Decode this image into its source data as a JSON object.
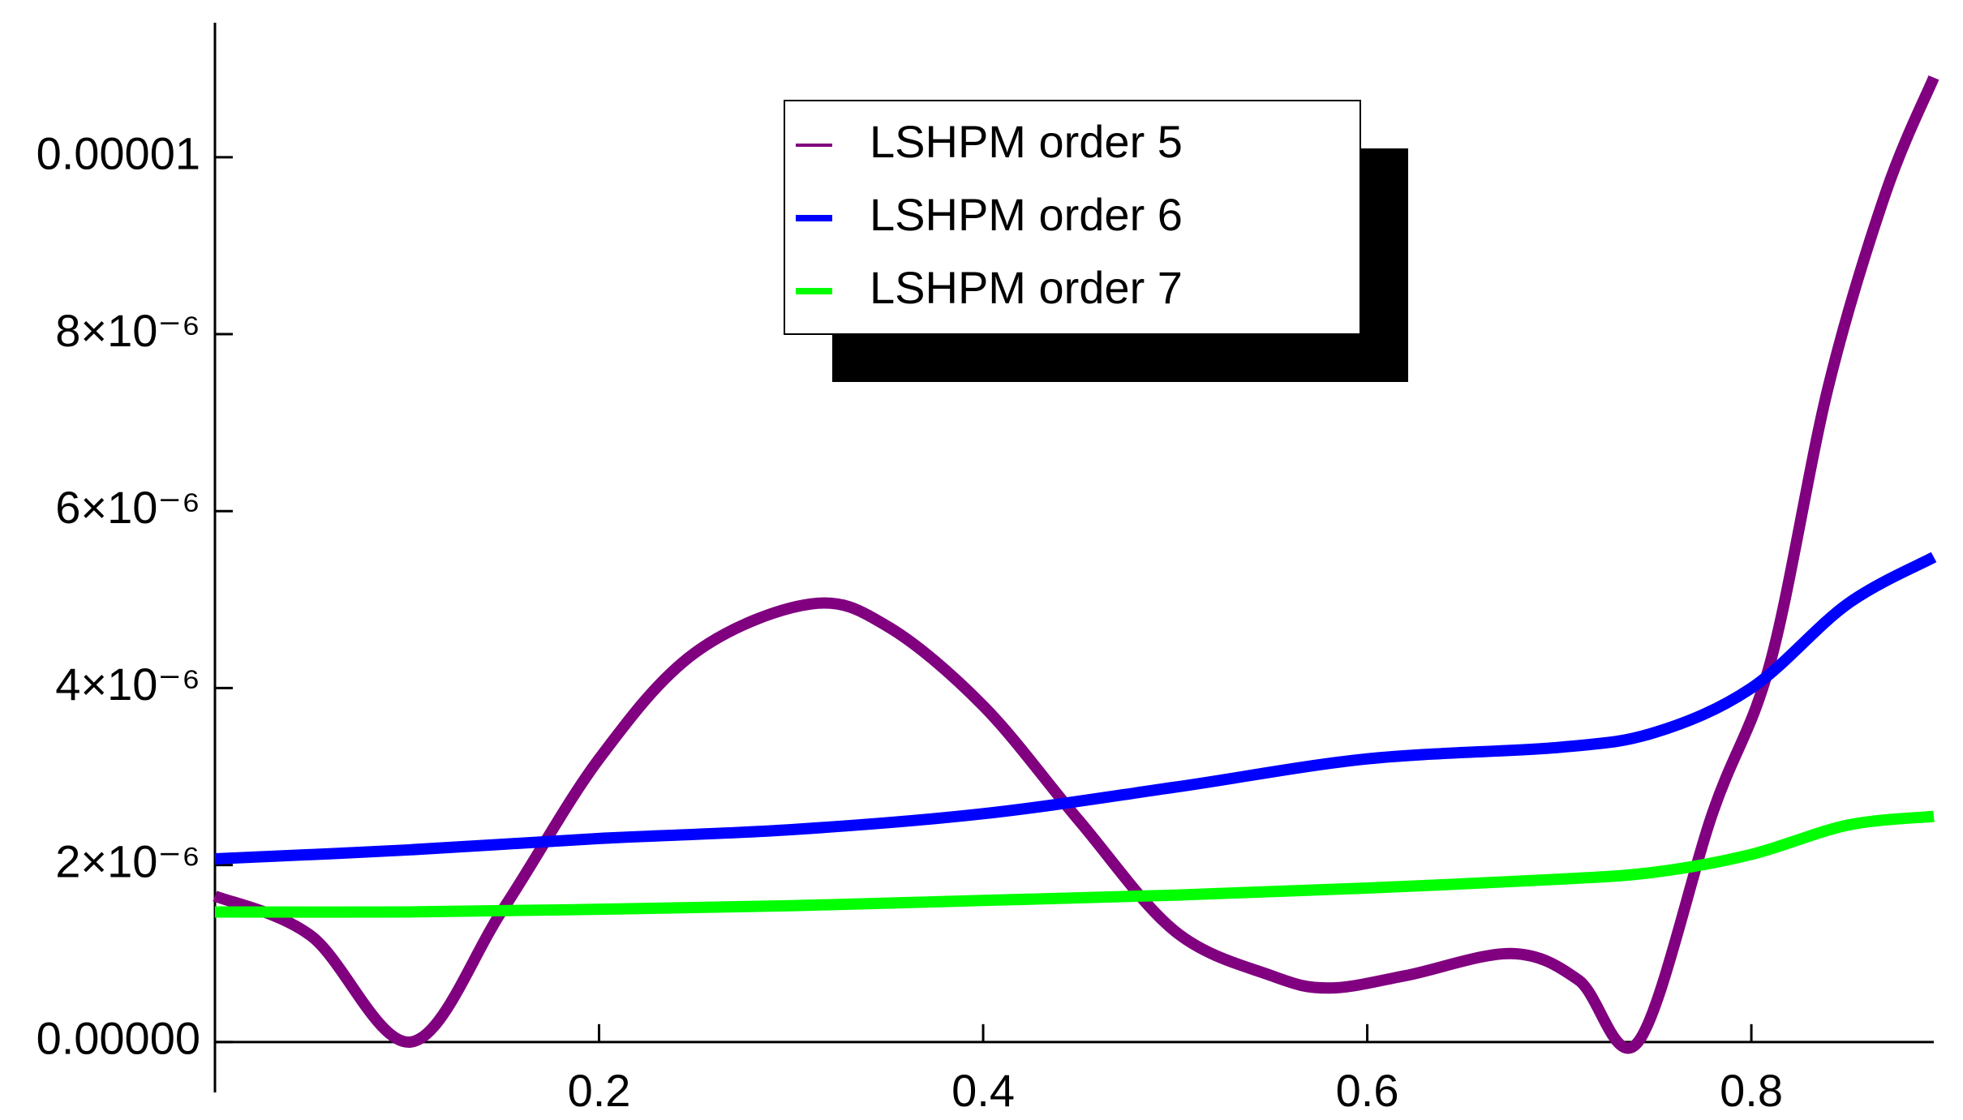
{
  "chart_data": {
    "type": "line",
    "xlim": [
      0,
      0.895
    ],
    "ylim": [
      -5.7e-07,
      1.152e-05
    ],
    "xticks": [
      0.2,
      0.4,
      0.6,
      0.8
    ],
    "yticks": [
      {
        "value": 0,
        "label": "0.00000"
      },
      {
        "value": 2e-06,
        "label": "2×10⁻⁶"
      },
      {
        "value": 4e-06,
        "label": "4×10⁻⁶"
      },
      {
        "value": 6e-06,
        "label": "6×10⁻⁶"
      },
      {
        "value": 8e-06,
        "label": "8×10⁻⁶"
      },
      {
        "value": 1e-05,
        "label": "0.00001"
      }
    ],
    "legend": "top-center",
    "series": [
      {
        "name": "LSHPM order 5",
        "color": "#800080",
        "x": [
          0,
          0.05,
          0.102,
          0.15,
          0.2,
          0.25,
          0.31,
          0.35,
          0.4,
          0.45,
          0.5,
          0.55,
          0.58,
          0.62,
          0.675,
          0.71,
          0.741,
          0.78,
          0.81,
          0.84,
          0.87,
          0.895
        ],
        "values": [
          1.65e-06,
          1.2e-06,
          0,
          1.5e-06,
          3.2e-06,
          4.4e-06,
          4.95e-06,
          4.7e-06,
          3.8e-06,
          2.5e-06,
          1.25e-06,
          7.5e-07,
          6.1e-07,
          7.5e-07,
          1e-06,
          7e-07,
          0,
          2.6e-06,
          4.3e-06,
          7.4e-06,
          9.6e-06,
          1.09e-05
        ]
      },
      {
        "name": "LSHPM order 6",
        "color": "#0000ff",
        "x": [
          0,
          0.1,
          0.2,
          0.3,
          0.4,
          0.5,
          0.6,
          0.7,
          0.75,
          0.8,
          0.85,
          0.895
        ],
        "values": [
          2.07e-06,
          2.17e-06,
          2.3e-06,
          2.4e-06,
          2.58e-06,
          2.88e-06,
          3.2e-06,
          3.33e-06,
          3.5e-06,
          4e-06,
          4.95e-06,
          5.48e-06
        ]
      },
      {
        "name": "LSHPM order 7",
        "color": "#00ff00",
        "x": [
          0,
          0.1,
          0.2,
          0.3,
          0.4,
          0.5,
          0.6,
          0.7,
          0.75,
          0.8,
          0.85,
          0.895
        ],
        "values": [
          1.47e-06,
          1.47e-06,
          1.5e-06,
          1.54e-06,
          1.6e-06,
          1.66e-06,
          1.74e-06,
          1.84e-06,
          1.92e-06,
          2.12e-06,
          2.45e-06,
          2.55e-06
        ]
      }
    ]
  }
}
